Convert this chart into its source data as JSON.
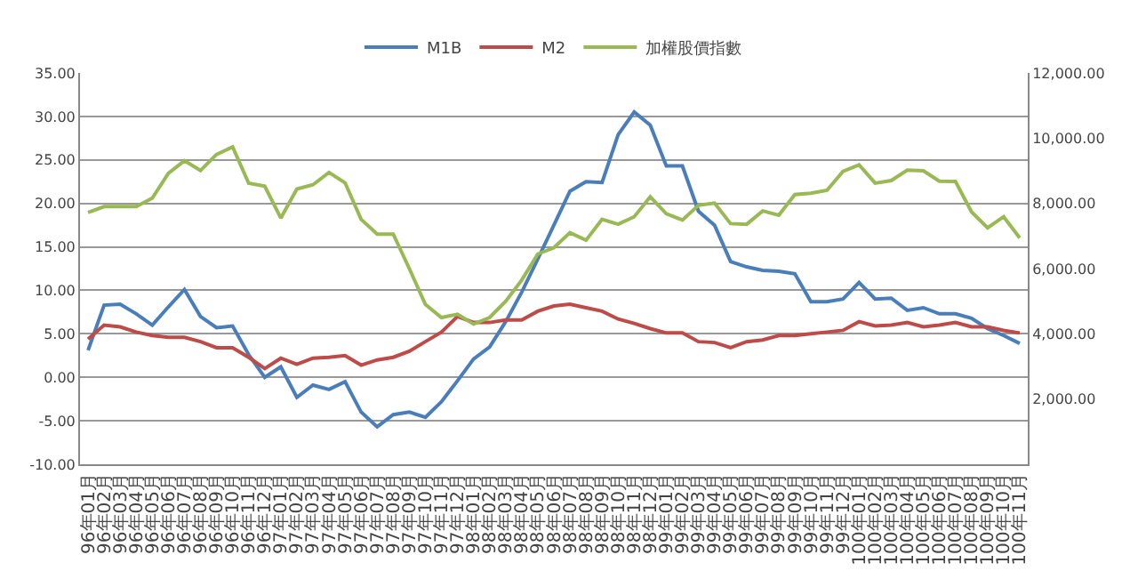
{
  "chart_data": {
    "type": "line",
    "categories": [
      "96年01月",
      "96年02月",
      "96年03月",
      "96年04月",
      "96年05月",
      "96年06月",
      "96年07月",
      "96年08月",
      "96年09月",
      "96年10月",
      "96年11月",
      "96年12月",
      "97年01月",
      "97年02月",
      "97年03月",
      "97年04月",
      "97年05月",
      "97年06月",
      "97年07月",
      "97年08月",
      "97年09月",
      "97年10月",
      "97年11月",
      "97年12月",
      "98年01月",
      "98年02月",
      "98年03月",
      "98年04月",
      "98年05月",
      "98年06月",
      "98年07月",
      "98年08月",
      "98年09月",
      "98年10月",
      "98年11月",
      "98年12月",
      "99年01月",
      "99年02月",
      "99年03月",
      "99年04月",
      "99年05月",
      "99年06月",
      "99年07月",
      "99年08月",
      "99年09月",
      "99年10月",
      "99年11月",
      "99年12月",
      "100年01月",
      "100年02月",
      "100年03月",
      "100年04月",
      "100年05月",
      "100年06月",
      "100年07月",
      "100年08月",
      "100年09月",
      "100年10月",
      "100年11月"
    ],
    "series": [
      {
        "name": "M1B",
        "color": "#4a7ebb",
        "values": [
          3.1,
          8.3,
          8.4,
          7.3,
          6.0,
          8.1,
          10.1,
          7.0,
          5.7,
          5.9,
          2.6,
          0.0,
          1.2,
          -2.3,
          -0.9,
          -1.4,
          -0.5,
          -4.0,
          -5.7,
          -4.3,
          -4.0,
          -4.6,
          -2.8,
          -0.4,
          2.1,
          3.5,
          6.4,
          9.8,
          13.6,
          17.5,
          21.4,
          22.5,
          22.4,
          27.9,
          30.5,
          29.0,
          24.3,
          24.3,
          19.1,
          17.5,
          13.3,
          12.7,
          12.3,
          12.2,
          11.9,
          8.7,
          8.7,
          9.0,
          10.9,
          9.0,
          9.1,
          7.7,
          8.0,
          7.3,
          7.3,
          6.8,
          5.6,
          4.8,
          3.9
        ]
      },
      {
        "name": "M2",
        "color": "#be4b48",
        "values": [
          4.4,
          6.0,
          5.8,
          5.2,
          4.8,
          4.6,
          4.6,
          4.1,
          3.4,
          3.4,
          2.3,
          1.0,
          2.2,
          1.5,
          2.2,
          2.3,
          2.5,
          1.4,
          2.0,
          2.3,
          3.0,
          4.1,
          5.2,
          7.0,
          6.3,
          6.3,
          6.6,
          6.6,
          7.6,
          8.2,
          8.4,
          8.0,
          7.6,
          6.7,
          6.2,
          5.6,
          5.1,
          5.1,
          4.1,
          4.0,
          3.4,
          4.1,
          4.3,
          4.8,
          4.8,
          5.0,
          5.2,
          5.4,
          6.4,
          5.9,
          6.0,
          6.3,
          5.8,
          6.0,
          6.3,
          5.8,
          5.8,
          5.4,
          5.1
        ]
      },
      {
        "name": "加權股價指數",
        "color": "#98b954",
        "axis": "y2",
        "values": [
          7720,
          7900,
          7900,
          7900,
          8160,
          8920,
          9310,
          9010,
          9500,
          9730,
          8620,
          8530,
          7550,
          8440,
          8570,
          8950,
          8630,
          7510,
          7060,
          7060,
          6000,
          4900,
          4500,
          4600,
          4300,
          4500,
          5000,
          5650,
          6450,
          6640,
          7100,
          6870,
          7510,
          7360,
          7590,
          8200,
          7680,
          7490,
          7940,
          8010,
          7380,
          7360,
          7770,
          7640,
          8270,
          8310,
          8400,
          8980,
          9180,
          8620,
          8700,
          9020,
          9000,
          8680,
          8670,
          7740,
          7250,
          7590,
          6940
        ]
      }
    ],
    "ylim": [
      -10,
      35
    ],
    "yticks": [
      {
        "value": -10,
        "label": "-10.00"
      },
      {
        "value": -5,
        "label": "-5.00"
      },
      {
        "value": 0,
        "label": "0.00"
      },
      {
        "value": 5,
        "label": "5.00"
      },
      {
        "value": 10,
        "label": "10.00"
      },
      {
        "value": 15,
        "label": "15.00"
      },
      {
        "value": 20,
        "label": "20.00"
      },
      {
        "value": 25,
        "label": "25.00"
      },
      {
        "value": 30,
        "label": "30.00"
      },
      {
        "value": 35,
        "label": "35.00"
      }
    ],
    "y2lim": [
      0,
      12000
    ],
    "y2ticks": [
      {
        "value": 2000,
        "label": "2,000.00"
      },
      {
        "value": 4000,
        "label": "4,000.00"
      },
      {
        "value": 6000,
        "label": "6,000.00"
      },
      {
        "value": 8000,
        "label": "8,000.00"
      },
      {
        "value": 10000,
        "label": "10,000.00"
      },
      {
        "value": 12000,
        "label": "12,000.00"
      }
    ],
    "grid": "y",
    "legend": "top",
    "marker": "none",
    "line_style": "solid"
  }
}
